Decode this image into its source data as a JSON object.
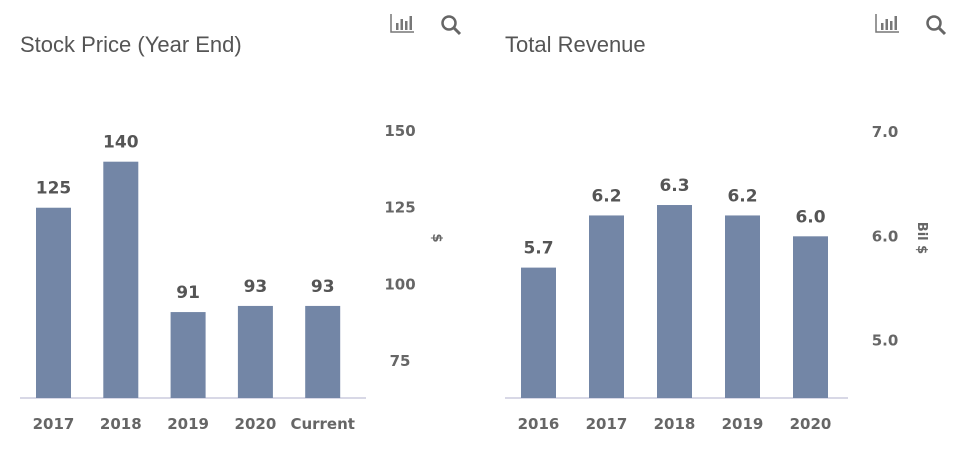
{
  "chart_data": [
    {
      "type": "bar",
      "title": "Stock Price (Year End)",
      "categories": [
        "2017",
        "2018",
        "2019",
        "2020",
        "Current"
      ],
      "values": [
        125,
        140,
        91,
        93,
        93
      ],
      "data_labels": [
        "125",
        "140",
        "91",
        "93",
        "93"
      ],
      "ylabel": "$",
      "y_ticks": [
        "75",
        "100",
        "125",
        "150"
      ],
      "ylim": [
        63,
        150
      ],
      "y_axis_position": "right",
      "grid": false,
      "bar_color": "#7386a6"
    },
    {
      "type": "bar",
      "title": "Total Revenue",
      "categories": [
        "2016",
        "2017",
        "2018",
        "2019",
        "2020"
      ],
      "values": [
        5.7,
        6.2,
        6.3,
        6.2,
        6.0
      ],
      "data_labels": [
        "5.7",
        "6.2",
        "6.3",
        "6.2",
        "6.0"
      ],
      "ylabel": "Bil $",
      "y_ticks": [
        "5.0",
        "6.0",
        "7.0"
      ],
      "ylim": [
        4.45,
        7.0
      ],
      "y_axis_position": "right",
      "grid": false,
      "bar_color": "#7386a6"
    }
  ],
  "icons": [
    "bar-chart-icon",
    "search-icon"
  ]
}
